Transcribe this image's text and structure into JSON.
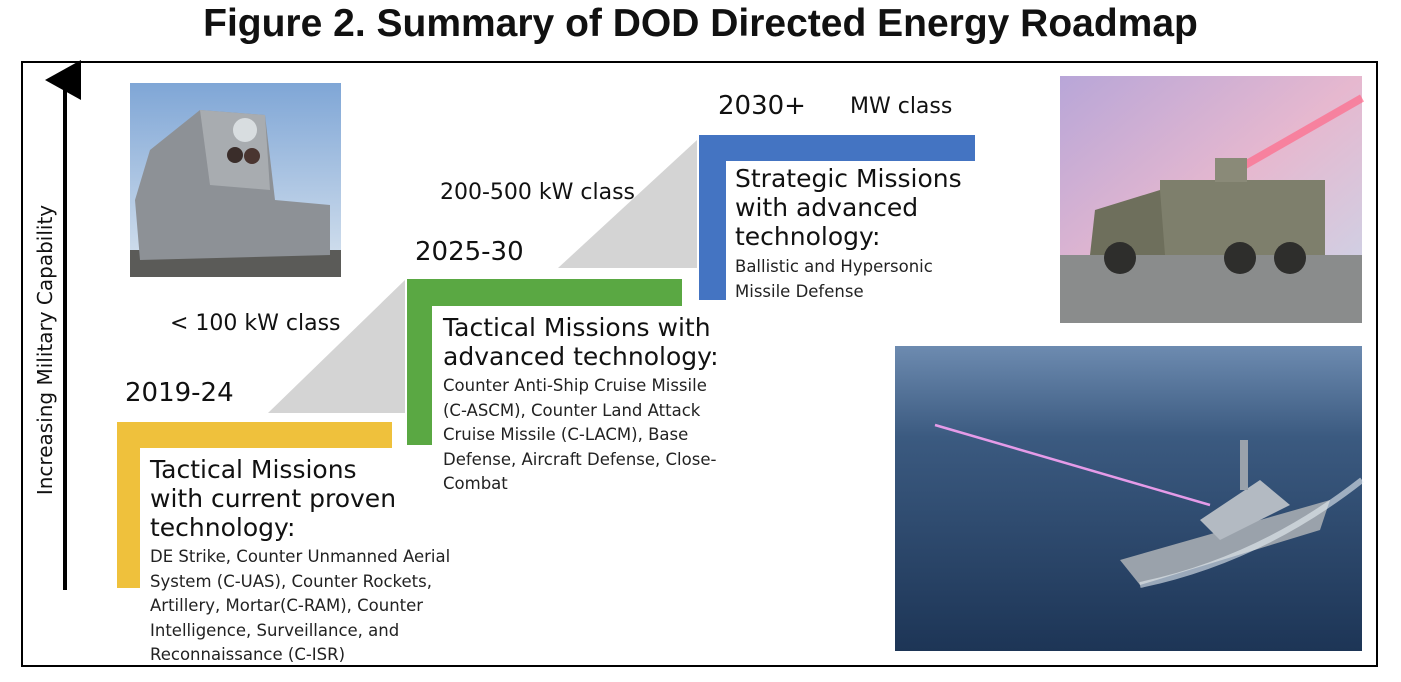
{
  "title": "Figure 2. Summary of DOD Directed Energy Roadmap",
  "axis_label": "Increasing Military Capability",
  "stages": [
    {
      "period": "2019-24",
      "power_class": "< 100 kW class",
      "heading": "Tactical Missions with current proven technology:",
      "description": "DE Strike, Counter Unmanned Aerial System (C-UAS), Counter Rockets, Artillery, Mortar(C-RAM), Counter Intelligence, Surveillance, and Reconnaissance (C-ISR)"
    },
    {
      "period": "2025-30",
      "power_class": "200-500 kW class",
      "heading": "Tactical Missions with advanced technology:",
      "description": "Counter Anti-Ship Cruise Missile (C-ASCM), Counter Land Attack Cruise Missile (C-LACM), Base Defense,  Aircraft Defense, Close-Combat"
    },
    {
      "period": "2030+",
      "power_class": "MW class",
      "heading": "Strategic Missions with advanced technology:",
      "description": "Ballistic and Hypersonic Missile Defense"
    }
  ]
}
